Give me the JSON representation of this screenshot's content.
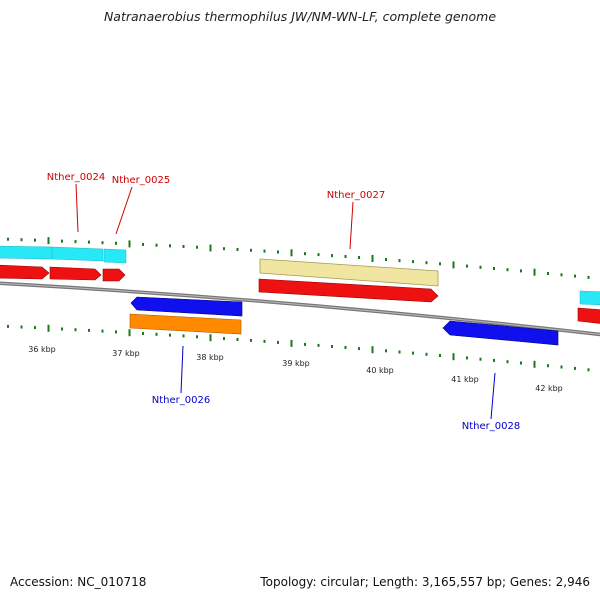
{
  "title": "Natranaerobius thermophilus JW/NM-WN-LF, complete genome",
  "accession": "Accession: NC_010718",
  "summary": "Topology: circular; Length: 3,165,557 bp; Genes: 2,946",
  "colors": {
    "backbone": "#888888",
    "tick": "#1a7a1a",
    "cds": "#ee1111",
    "cyan": "#22e6f2",
    "blue": "#1010ee",
    "orange": "#ff8800",
    "khaki": "#f0e6a0",
    "label_forward": "#cc0000",
    "label_reverse": "#0000cc"
  },
  "kbp_labels": [
    "36 kbp",
    "37 kbp",
    "38 kbp",
    "39 kbp",
    "40 kbp",
    "41 kbp",
    "42 kbp"
  ],
  "gene_labels": {
    "g24": "Nther_0024",
    "g25": "Nther_0025",
    "g26": "Nther_0026",
    "g27": "Nther_0027",
    "g28": "Nther_0028"
  }
}
